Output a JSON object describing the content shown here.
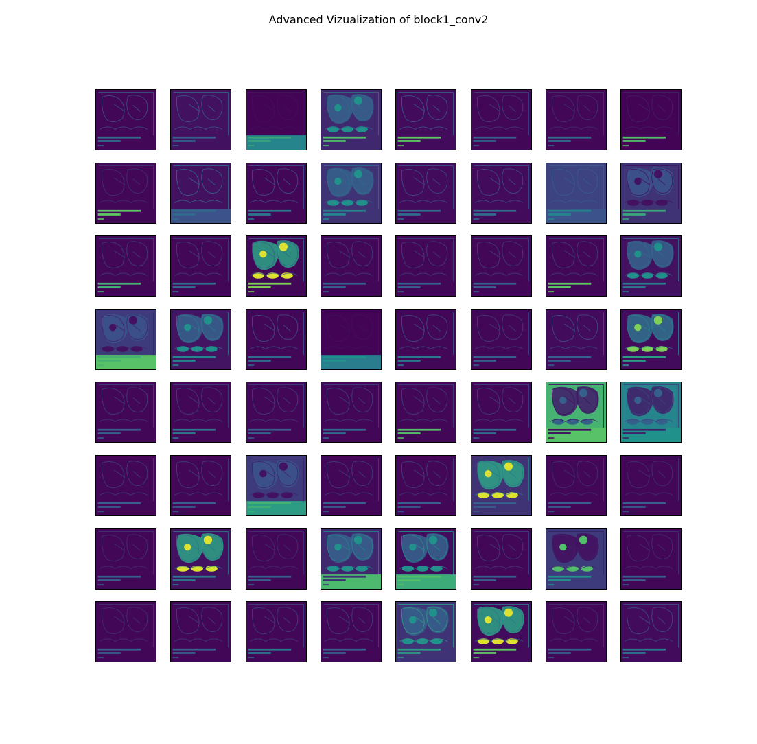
{
  "figure": {
    "title": "Advanced Vizualization of block1_conv2"
  },
  "colormap": {
    "name": "viridis",
    "low": "#440154",
    "mid_low": "#3b528b",
    "mid": "#21918c",
    "mid_high": "#5ec962",
    "high": "#fde725"
  },
  "grid": {
    "rows": 8,
    "cols": 8,
    "tiles": [
      {
        "bg": 0.02,
        "edge": 0.25,
        "text": 0.35,
        "fill": "none",
        "band": null
      },
      {
        "bg": 0.05,
        "edge": 0.3,
        "text": 0.3,
        "fill": "none",
        "band": null
      },
      {
        "bg": 0.01,
        "edge": 0.05,
        "text": 0.6,
        "fill": "none",
        "band": 0.45
      },
      {
        "bg": 0.12,
        "edge": 0.35,
        "text": 0.7,
        "fill": "blobs_mid",
        "band": null
      },
      {
        "bg": 0.03,
        "edge": 0.3,
        "text": 0.75,
        "fill": "none",
        "band": null
      },
      {
        "bg": 0.02,
        "edge": 0.2,
        "text": 0.3,
        "fill": "none",
        "band": null
      },
      {
        "bg": 0.02,
        "edge": 0.15,
        "text": 0.35,
        "fill": "none",
        "band": null
      },
      {
        "bg": 0.01,
        "edge": 0.1,
        "text": 0.7,
        "fill": "none",
        "band": null
      },
      {
        "bg": 0.02,
        "edge": 0.15,
        "text": 0.75,
        "fill": "none",
        "band": null
      },
      {
        "bg": 0.05,
        "edge": 0.35,
        "text": 0.35,
        "fill": "none",
        "band": 0.25
      },
      {
        "bg": 0.02,
        "edge": 0.25,
        "text": 0.4,
        "fill": "none",
        "band": null
      },
      {
        "bg": 0.15,
        "edge": 0.35,
        "text": 0.45,
        "fill": "blobs_mid",
        "band": null
      },
      {
        "bg": 0.03,
        "edge": 0.25,
        "text": 0.35,
        "fill": "none",
        "band": null
      },
      {
        "bg": 0.03,
        "edge": 0.25,
        "text": 0.35,
        "fill": "none",
        "band": null
      },
      {
        "bg": 0.2,
        "edge": 0.3,
        "text": 0.45,
        "fill": "none",
        "band": 0.25
      },
      {
        "bg": 0.15,
        "edge": 0.05,
        "text": 0.6,
        "fill": "blobs_dark",
        "band": null
      },
      {
        "bg": 0.02,
        "edge": 0.2,
        "text": 0.65,
        "fill": "none",
        "band": null
      },
      {
        "bg": 0.02,
        "edge": 0.2,
        "text": 0.35,
        "fill": "none",
        "band": null
      },
      {
        "bg": 0.02,
        "edge": 0.3,
        "text": 0.8,
        "fill": "bright",
        "band": null
      },
      {
        "bg": 0.02,
        "edge": 0.2,
        "text": 0.3,
        "fill": "none",
        "band": null
      },
      {
        "bg": 0.02,
        "edge": 0.2,
        "text": 0.3,
        "fill": "none",
        "band": null
      },
      {
        "bg": 0.02,
        "edge": 0.2,
        "text": 0.3,
        "fill": "none",
        "band": null
      },
      {
        "bg": 0.02,
        "edge": 0.2,
        "text": 0.75,
        "fill": "none",
        "band": null
      },
      {
        "bg": 0.05,
        "edge": 0.35,
        "text": 0.4,
        "fill": "blobs_mid",
        "band": null
      },
      {
        "bg": 0.18,
        "edge": 0.1,
        "text": 0.65,
        "fill": "blobs_dark",
        "band": 0.72
      },
      {
        "bg": 0.06,
        "edge": 0.4,
        "text": 0.45,
        "fill": "blobs_mid",
        "band": null
      },
      {
        "bg": 0.02,
        "edge": 0.25,
        "text": 0.35,
        "fill": "none",
        "band": null
      },
      {
        "bg": 0.01,
        "edge": 0.05,
        "text": 0.5,
        "fill": "none",
        "band": 0.42
      },
      {
        "bg": 0.02,
        "edge": 0.25,
        "text": 0.4,
        "fill": "none",
        "band": null
      },
      {
        "bg": 0.02,
        "edge": 0.2,
        "text": 0.3,
        "fill": "none",
        "band": null
      },
      {
        "bg": 0.03,
        "edge": 0.25,
        "text": 0.3,
        "fill": "none",
        "band": null
      },
      {
        "bg": 0.03,
        "edge": 0.45,
        "text": 0.55,
        "fill": "blobs_bright",
        "band": null
      },
      {
        "bg": 0.02,
        "edge": 0.2,
        "text": 0.3,
        "fill": "none",
        "band": null
      },
      {
        "bg": 0.02,
        "edge": 0.2,
        "text": 0.4,
        "fill": "none",
        "band": null
      },
      {
        "bg": 0.02,
        "edge": 0.2,
        "text": 0.3,
        "fill": "none",
        "band": null
      },
      {
        "bg": 0.02,
        "edge": 0.2,
        "text": 0.35,
        "fill": "none",
        "band": null
      },
      {
        "bg": 0.02,
        "edge": 0.2,
        "text": 0.7,
        "fill": "none",
        "band": null
      },
      {
        "bg": 0.02,
        "edge": 0.2,
        "text": 0.35,
        "fill": "none",
        "band": null
      },
      {
        "bg": 0.65,
        "edge": 0.05,
        "text": 0.05,
        "fill": "inverse",
        "band": 0.72
      },
      {
        "bg": 0.45,
        "edge": 0.2,
        "text": 0.1,
        "fill": "inverse",
        "band": 0.5
      },
      {
        "bg": 0.02,
        "edge": 0.2,
        "text": 0.3,
        "fill": "none",
        "band": null
      },
      {
        "bg": 0.02,
        "edge": 0.2,
        "text": 0.3,
        "fill": "none",
        "band": null
      },
      {
        "bg": 0.18,
        "edge": 0.1,
        "text": 0.65,
        "fill": "blobs_dark",
        "band": 0.55
      },
      {
        "bg": 0.02,
        "edge": 0.2,
        "text": 0.3,
        "fill": "none",
        "band": null
      },
      {
        "bg": 0.02,
        "edge": 0.2,
        "text": 0.3,
        "fill": "none",
        "band": null
      },
      {
        "bg": 0.15,
        "edge": 0.4,
        "text": 0.3,
        "fill": "bright",
        "band": null
      },
      {
        "bg": 0.02,
        "edge": 0.15,
        "text": 0.3,
        "fill": "none",
        "band": null
      },
      {
        "bg": 0.02,
        "edge": 0.15,
        "text": 0.3,
        "fill": "none",
        "band": null
      },
      {
        "bg": 0.02,
        "edge": 0.15,
        "text": 0.3,
        "fill": "none",
        "band": null
      },
      {
        "bg": 0.05,
        "edge": 0.4,
        "text": 0.4,
        "fill": "bright",
        "band": null
      },
      {
        "bg": 0.02,
        "edge": 0.15,
        "text": 0.3,
        "fill": "none",
        "band": null
      },
      {
        "bg": 0.12,
        "edge": 0.45,
        "text": 0.15,
        "fill": "blobs_mid",
        "band": 0.68
      },
      {
        "bg": 0.03,
        "edge": 0.5,
        "text": 0.7,
        "fill": "blobs_mid",
        "band": 0.62
      },
      {
        "bg": 0.02,
        "edge": 0.2,
        "text": 0.3,
        "fill": "none",
        "band": null
      },
      {
        "bg": 0.18,
        "edge": 0.1,
        "text": 0.5,
        "fill": "dark_bright",
        "band": null
      },
      {
        "bg": 0.02,
        "edge": 0.15,
        "text": 0.3,
        "fill": "none",
        "band": null
      },
      {
        "bg": 0.02,
        "edge": 0.15,
        "text": 0.3,
        "fill": "none",
        "band": null
      },
      {
        "bg": 0.02,
        "edge": 0.2,
        "text": 0.3,
        "fill": "none",
        "band": null
      },
      {
        "bg": 0.02,
        "edge": 0.2,
        "text": 0.4,
        "fill": "none",
        "band": null
      },
      {
        "bg": 0.02,
        "edge": 0.2,
        "text": 0.3,
        "fill": "none",
        "band": null
      },
      {
        "bg": 0.15,
        "edge": 0.55,
        "text": 0.55,
        "fill": "blobs_mid",
        "band": null
      },
      {
        "bg": 0.03,
        "edge": 0.4,
        "text": 0.75,
        "fill": "bright",
        "band": null
      },
      {
        "bg": 0.02,
        "edge": 0.15,
        "text": 0.3,
        "fill": "none",
        "band": null
      },
      {
        "bg": 0.03,
        "edge": 0.25,
        "text": 0.4,
        "fill": "none",
        "band": null
      }
    ]
  }
}
